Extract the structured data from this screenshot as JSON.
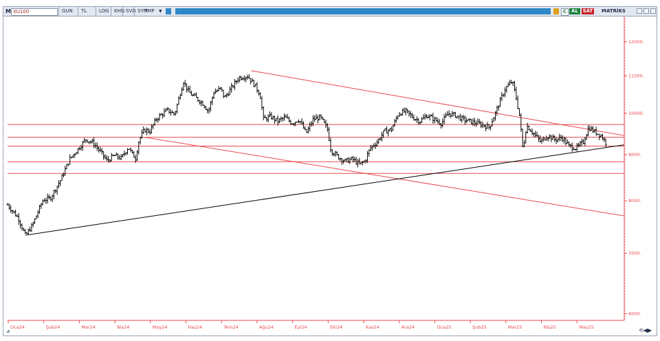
{
  "window": {
    "title_letter": "M",
    "symbol": "XU100",
    "toolbar_items": [
      "GUN",
      "TL",
      "LOG",
      "KHN",
      "SVD",
      "SYM",
      "TMP"
    ],
    "buy_label": "AL",
    "sell_label": "SAT",
    "brand": "MATRİKS",
    "c_icon": "C",
    "footer_icon": "scroll-arrows-icon"
  },
  "colors": {
    "price_bars": "#000000",
    "horizontal_levels": "#e8484f",
    "channel_lines": "#e8484f",
    "support_trendline": "#000000",
    "axis": "#e8484f",
    "tick_labels": "#e8484f",
    "toolbar_fill": "#2f88c8"
  },
  "chart_data": {
    "type": "ohlc",
    "symbol": "XU100",
    "period": "daily",
    "y_scale": "log",
    "ylim": [
      5900,
      12800
    ],
    "y_ticks": [
      {
        "value": 12000,
        "label": "12000."
      },
      {
        "value": 11000,
        "label": "11000."
      },
      {
        "value": 10000,
        "label": "10000."
      },
      {
        "value": 9000,
        "label": "9000."
      },
      {
        "value": 8000,
        "label": "8000."
      },
      {
        "value": 7000,
        "label": "7000."
      },
      {
        "value": 6000,
        "label": "6000."
      }
    ],
    "x_ticks": [
      "Oca24",
      "Şub24",
      "Mar24",
      "Nis24",
      "May24",
      "Haz24",
      "Tem24",
      "Ağu24",
      "Eyl24",
      "Eki24",
      "Kas24",
      "Ara24",
      "Oca25",
      "Şub25",
      "Mar25",
      "Nis25",
      "May25"
    ],
    "x_span": [
      0,
      17.35
    ],
    "closes": [
      {
        "t": 0.0,
        "v": 7920
      },
      {
        "t": 0.3,
        "v": 7660
      },
      {
        "t": 0.5,
        "v": 7320
      },
      {
        "t": 0.7,
        "v": 7520
      },
      {
        "t": 1.0,
        "v": 8020
      },
      {
        "t": 1.2,
        "v": 8050
      },
      {
        "t": 1.5,
        "v": 8450
      },
      {
        "t": 1.75,
        "v": 8900
      },
      {
        "t": 2.0,
        "v": 9150
      },
      {
        "t": 2.2,
        "v": 9360
      },
      {
        "t": 2.4,
        "v": 9280
      },
      {
        "t": 2.6,
        "v": 9080
      },
      {
        "t": 2.8,
        "v": 8860
      },
      {
        "t": 3.0,
        "v": 8980
      },
      {
        "t": 3.2,
        "v": 8920
      },
      {
        "t": 3.4,
        "v": 9180
      },
      {
        "t": 3.5,
        "v": 9020
      },
      {
        "t": 3.6,
        "v": 8920
      },
      {
        "t": 3.7,
        "v": 9350
      },
      {
        "t": 3.85,
        "v": 9590
      },
      {
        "t": 4.0,
        "v": 9550
      },
      {
        "t": 4.2,
        "v": 9880
      },
      {
        "t": 4.5,
        "v": 10080
      },
      {
        "t": 4.7,
        "v": 9980
      },
      {
        "t": 4.85,
        "v": 10500
      },
      {
        "t": 4.95,
        "v": 10850
      },
      {
        "t": 5.1,
        "v": 10550
      },
      {
        "t": 5.3,
        "v": 10400
      },
      {
        "t": 5.5,
        "v": 10250
      },
      {
        "t": 5.65,
        "v": 10050
      },
      {
        "t": 5.8,
        "v": 10550
      },
      {
        "t": 6.0,
        "v": 10650
      },
      {
        "t": 6.1,
        "v": 10400
      },
      {
        "t": 6.25,
        "v": 10600
      },
      {
        "t": 6.5,
        "v": 10950
      },
      {
        "t": 6.75,
        "v": 11000
      },
      {
        "t": 6.95,
        "v": 10750
      },
      {
        "t": 7.1,
        "v": 10500
      },
      {
        "t": 7.2,
        "v": 9850
      },
      {
        "t": 7.4,
        "v": 9920
      },
      {
        "t": 7.6,
        "v": 9800
      },
      {
        "t": 7.8,
        "v": 9900
      },
      {
        "t": 8.0,
        "v": 9750
      },
      {
        "t": 8.2,
        "v": 9850
      },
      {
        "t": 8.4,
        "v": 9500
      },
      {
        "t": 8.6,
        "v": 9850
      },
      {
        "t": 8.8,
        "v": 9900
      },
      {
        "t": 9.0,
        "v": 9600
      },
      {
        "t": 9.1,
        "v": 9100
      },
      {
        "t": 9.3,
        "v": 8950
      },
      {
        "t": 9.5,
        "v": 8850
      },
      {
        "t": 9.7,
        "v": 8900
      },
      {
        "t": 9.9,
        "v": 8780
      },
      {
        "t": 10.05,
        "v": 8850
      },
      {
        "t": 10.2,
        "v": 9150
      },
      {
        "t": 10.4,
        "v": 9300
      },
      {
        "t": 10.6,
        "v": 9550
      },
      {
        "t": 10.8,
        "v": 9600
      },
      {
        "t": 11.0,
        "v": 10000
      },
      {
        "t": 11.2,
        "v": 10050
      },
      {
        "t": 11.4,
        "v": 9900
      },
      {
        "t": 11.6,
        "v": 9800
      },
      {
        "t": 11.8,
        "v": 9950
      },
      {
        "t": 12.0,
        "v": 9850
      },
      {
        "t": 12.2,
        "v": 9750
      },
      {
        "t": 12.4,
        "v": 10000
      },
      {
        "t": 12.6,
        "v": 9950
      },
      {
        "t": 12.8,
        "v": 9850
      },
      {
        "t": 13.0,
        "v": 9800
      },
      {
        "t": 13.2,
        "v": 9750
      },
      {
        "t": 13.4,
        "v": 9700
      },
      {
        "t": 13.55,
        "v": 9650
      },
      {
        "t": 13.7,
        "v": 9950
      },
      {
        "t": 13.85,
        "v": 10300
      },
      {
        "t": 14.0,
        "v": 10650
      },
      {
        "t": 14.2,
        "v": 10850
      },
      {
        "t": 14.3,
        "v": 10450
      },
      {
        "t": 14.4,
        "v": 9950
      },
      {
        "t": 14.5,
        "v": 9100
      },
      {
        "t": 14.6,
        "v": 9700
      },
      {
        "t": 14.8,
        "v": 9500
      },
      {
        "t": 15.0,
        "v": 9300
      },
      {
        "t": 15.2,
        "v": 9450
      },
      {
        "t": 15.4,
        "v": 9350
      },
      {
        "t": 15.6,
        "v": 9400
      },
      {
        "t": 15.8,
        "v": 9200
      },
      {
        "t": 16.0,
        "v": 9150
      },
      {
        "t": 16.2,
        "v": 9300
      },
      {
        "t": 16.35,
        "v": 9650
      },
      {
        "t": 16.5,
        "v": 9550
      },
      {
        "t": 16.7,
        "v": 9450
      },
      {
        "t": 16.85,
        "v": 9250
      }
    ],
    "horizontal_levels": [
      9720,
      9410,
      9200,
      8840,
      8580
    ],
    "trendlines": [
      {
        "role": "upper-channel",
        "from": {
          "t": 6.85,
          "v": 11150
        },
        "to": {
          "t": 17.35,
          "v": 9450
        }
      },
      {
        "role": "lower-channel",
        "from": {
          "t": 3.85,
          "v": 9410
        },
        "to": {
          "t": 17.35,
          "v": 7700
        }
      },
      {
        "role": "support",
        "from": {
          "t": 0.5,
          "v": 7330
        },
        "to": {
          "t": 17.35,
          "v": 9230
        }
      }
    ]
  }
}
